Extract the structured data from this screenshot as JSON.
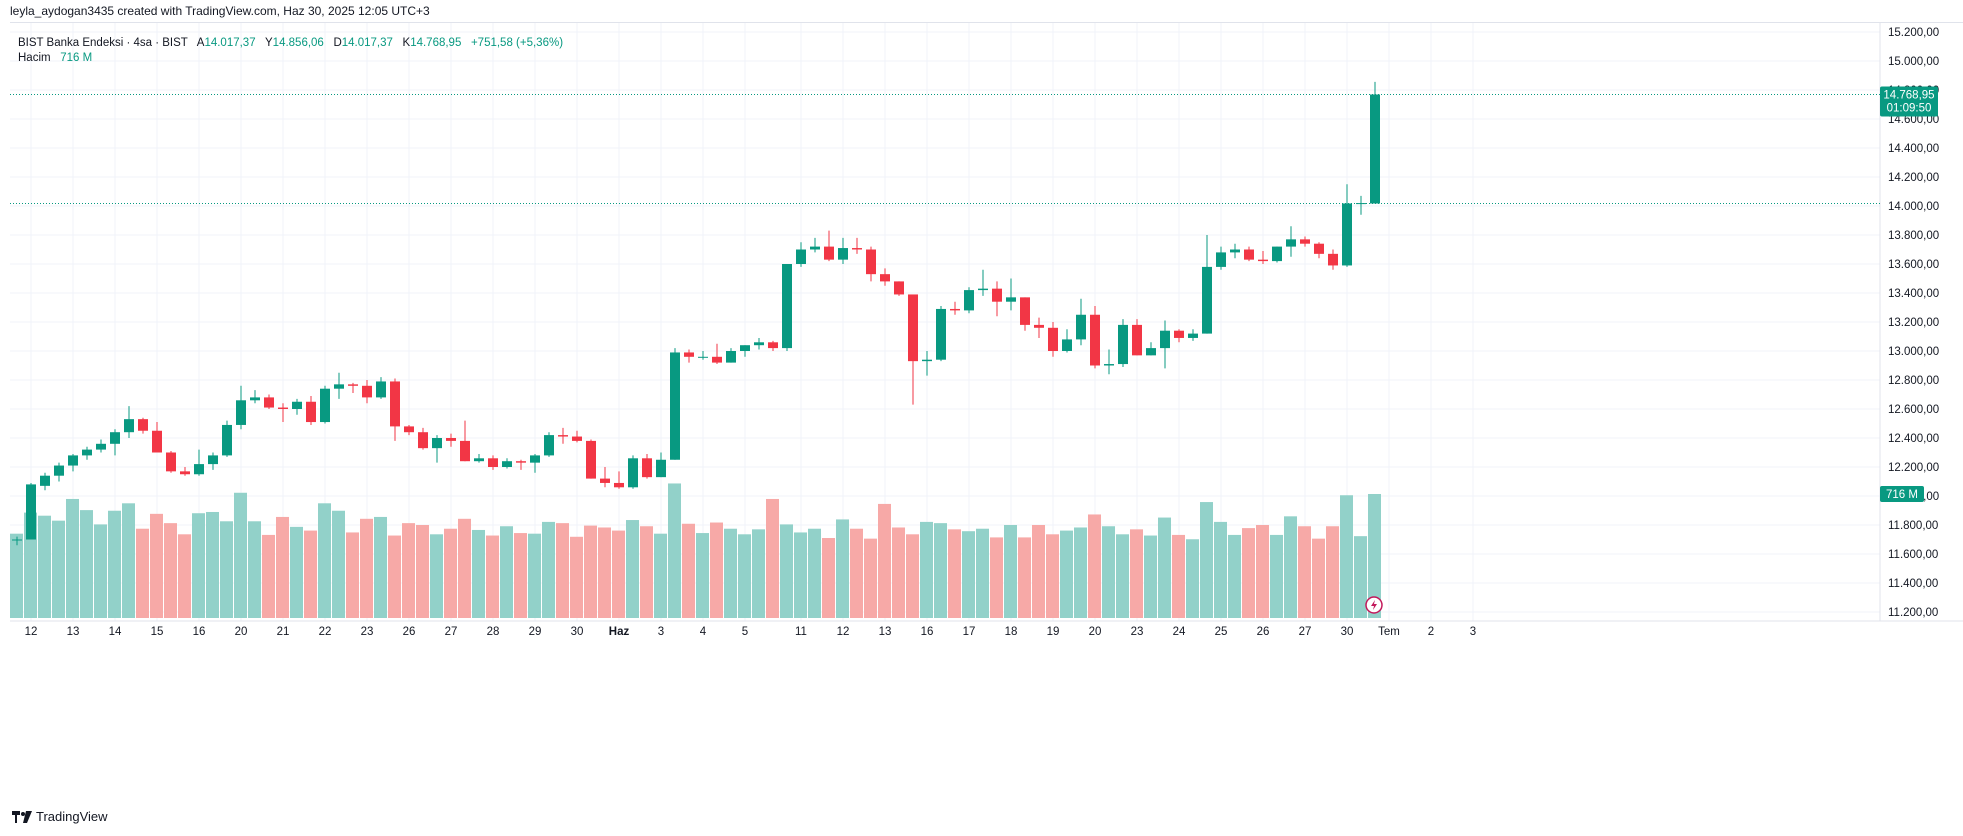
{
  "header": {
    "attribution": "leyla_aydogan3435 created with TradingView.com, Haz 30, 2025 12:05 UTC+3"
  },
  "legend": {
    "symbol": "BIST Banka Endeksi · 4sa · BIST",
    "open_label": "A",
    "open": "14.017,37",
    "high_label": "Y",
    "high": "14.856,06",
    "low_label": "D",
    "low": "14.017,37",
    "close_label": "K",
    "close": "14.768,95",
    "change": "+751,58 (+5,36%)",
    "volume_label": "Hacim",
    "volume": "716 M"
  },
  "price_badge": {
    "price": "14.768,95",
    "countdown": "01:09:50"
  },
  "volume_badge": "716 M",
  "footer": {
    "brand": "TradingView"
  },
  "colors": {
    "up": "#089981",
    "down": "#f23645",
    "vol_up": "#92d1c9",
    "vol_down": "#f7a9a7",
    "grid": "#f0f3fa",
    "dotted": "#089981"
  },
  "chart_data": {
    "type": "candlestick",
    "y_axis": {
      "min": 11200,
      "max": 15200,
      "ticks": [
        "15.200,00",
        "15.000,00",
        "14.800,00",
        "14.600,00",
        "14.400,00",
        "14.200,00",
        "14.000,00",
        "13.800,00",
        "13.600,00",
        "13.400,00",
        "13.200,00",
        "13.000,00",
        "12.800,00",
        "12.600,00",
        "12.400,00",
        "12.200,00",
        "12.000,00",
        "11.800,00",
        "11.600,00",
        "11.400,00",
        "11.200,00"
      ]
    },
    "x_ticks": [
      {
        "label": "12",
        "i": 1
      },
      {
        "label": "13",
        "i": 4
      },
      {
        "label": "14",
        "i": 7
      },
      {
        "label": "15",
        "i": 10
      },
      {
        "label": "16",
        "i": 13
      },
      {
        "label": "20",
        "i": 16
      },
      {
        "label": "21",
        "i": 19
      },
      {
        "label": "22",
        "i": 22
      },
      {
        "label": "23",
        "i": 25
      },
      {
        "label": "26",
        "i": 28
      },
      {
        "label": "27",
        "i": 31
      },
      {
        "label": "28",
        "i": 34
      },
      {
        "label": "29",
        "i": 37
      },
      {
        "label": "30",
        "i": 40
      },
      {
        "label": "Haz",
        "i": 43
      },
      {
        "label": "3",
        "i": 46
      },
      {
        "label": "4",
        "i": 49
      },
      {
        "label": "5",
        "i": 52
      },
      {
        "label": "11",
        "i": 56
      },
      {
        "label": "12",
        "i": 59
      },
      {
        "label": "13",
        "i": 62
      },
      {
        "label": "16",
        "i": 65
      },
      {
        "label": "17",
        "i": 68
      },
      {
        "label": "18",
        "i": 71
      },
      {
        "label": "19",
        "i": 74
      },
      {
        "label": "20",
        "i": 77
      },
      {
        "label": "23",
        "i": 80
      },
      {
        "label": "24",
        "i": 83
      },
      {
        "label": "25",
        "i": 86
      },
      {
        "label": "26",
        "i": 89
      },
      {
        "label": "27",
        "i": 92
      },
      {
        "label": "30",
        "i": 95
      },
      {
        "label": "Tem",
        "i": 98
      },
      {
        "label": "2",
        "i": 101
      },
      {
        "label": "3",
        "i": 104
      }
    ],
    "horizontal_lines": [
      14768.95,
      14017.37
    ],
    "candles": [
      [
        11700,
        11720,
        11660,
        11700,
        1.36
      ],
      [
        11700,
        12090,
        11700,
        12080,
        1.7
      ],
      [
        12070,
        12160,
        12040,
        12140,
        1.65
      ],
      [
        12140,
        12230,
        12100,
        12210,
        1.57
      ],
      [
        12210,
        12290,
        12170,
        12280,
        1.92
      ],
      [
        12280,
        12340,
        12250,
        12320,
        1.74
      ],
      [
        12320,
        12390,
        12300,
        12360,
        1.51
      ],
      [
        12360,
        12460,
        12280,
        12440,
        1.73
      ],
      [
        12440,
        12620,
        12400,
        12530,
        1.85
      ],
      [
        12530,
        12540,
        12430,
        12450,
        1.44
      ],
      [
        12450,
        12510,
        12300,
        12300,
        1.68
      ],
      [
        12300,
        12310,
        12160,
        12170,
        1.53
      ],
      [
        12170,
        12200,
        12140,
        12150,
        1.35
      ],
      [
        12150,
        12320,
        12140,
        12220,
        1.69
      ],
      [
        12220,
        12300,
        12180,
        12280,
        1.71
      ],
      [
        12280,
        12520,
        12270,
        12490,
        1.56
      ],
      [
        12490,
        12760,
        12460,
        12660,
        2.02
      ],
      [
        12660,
        12730,
        12640,
        12680,
        1.56
      ],
      [
        12680,
        12700,
        12600,
        12610,
        1.34
      ],
      [
        12610,
        12640,
        12510,
        12600,
        1.63
      ],
      [
        12600,
        12670,
        12560,
        12650,
        1.47
      ],
      [
        12650,
        12690,
        12490,
        12510,
        1.41
      ],
      [
        12510,
        12760,
        12500,
        12740,
        1.85
      ],
      [
        12740,
        12850,
        12670,
        12770,
        1.73
      ],
      [
        12770,
        12780,
        12710,
        12760,
        1.38
      ],
      [
        12760,
        12800,
        12640,
        12680,
        1.6
      ],
      [
        12680,
        12820,
        12670,
        12790,
        1.63
      ],
      [
        12790,
        12810,
        12380,
        12480,
        1.33
      ],
      [
        12480,
        12490,
        12420,
        12440,
        1.53
      ],
      [
        12440,
        12470,
        12320,
        12330,
        1.5
      ],
      [
        12330,
        12420,
        12230,
        12400,
        1.35
      ],
      [
        12400,
        12430,
        12340,
        12380,
        1.44
      ],
      [
        12380,
        12520,
        12240,
        12240,
        1.6
      ],
      [
        12240,
        12290,
        12230,
        12260,
        1.42
      ],
      [
        12260,
        12280,
        12180,
        12200,
        1.33
      ],
      [
        12200,
        12260,
        12190,
        12240,
        1.48
      ],
      [
        12240,
        12250,
        12180,
        12230,
        1.37
      ],
      [
        12230,
        12290,
        12160,
        12280,
        1.36
      ],
      [
        12280,
        12440,
        12270,
        12420,
        1.55
      ],
      [
        12420,
        12470,
        12360,
        12410,
        1.53
      ],
      [
        12410,
        12450,
        12370,
        12380,
        1.31
      ],
      [
        12380,
        12390,
        12130,
        12120,
        1.49
      ],
      [
        12120,
        12200,
        12060,
        12090,
        1.46
      ],
      [
        12090,
        12170,
        12050,
        12060,
        1.41
      ],
      [
        12060,
        12280,
        12050,
        12260,
        1.58
      ],
      [
        12260,
        12290,
        12120,
        12130,
        1.48
      ],
      [
        12130,
        12300,
        12130,
        12250,
        1.36
      ],
      [
        12250,
        13020,
        12250,
        12990,
        2.17
      ],
      [
        12990,
        13010,
        12920,
        12960,
        1.52
      ],
      [
        12960,
        13000,
        12940,
        12960,
        1.37
      ],
      [
        12960,
        13050,
        12910,
        12920,
        1.54
      ],
      [
        12920,
        13020,
        12920,
        13000,
        1.44
      ],
      [
        13000,
        13040,
        12960,
        13040,
        1.35
      ],
      [
        13040,
        13090,
        13010,
        13060,
        1.43
      ],
      [
        13060,
        13070,
        13000,
        13020,
        1.92
      ],
      [
        13020,
        13600,
        13000,
        13600,
        1.51
      ],
      [
        13600,
        13750,
        13580,
        13700,
        1.38
      ],
      [
        13700,
        13780,
        13680,
        13720,
        1.44
      ],
      [
        13720,
        13830,
        13620,
        13630,
        1.29
      ],
      [
        13630,
        13780,
        13600,
        13710,
        1.59
      ],
      [
        13710,
        13780,
        13670,
        13700,
        1.44
      ],
      [
        13700,
        13720,
        13480,
        13530,
        1.28
      ],
      [
        13530,
        13570,
        13450,
        13480,
        1.84
      ],
      [
        13480,
        13460,
        13380,
        13390,
        1.46
      ],
      [
        13390,
        13360,
        12630,
        12930,
        1.35
      ],
      [
        12930,
        13000,
        12830,
        12940,
        1.55
      ],
      [
        12940,
        13310,
        12930,
        13290,
        1.53
      ],
      [
        13290,
        13340,
        13250,
        13280,
        1.43
      ],
      [
        13280,
        13440,
        13260,
        13420,
        1.4
      ],
      [
        13420,
        13560,
        13380,
        13430,
        1.44
      ],
      [
        13430,
        13480,
        13240,
        13340,
        1.3
      ],
      [
        13340,
        13500,
        13280,
        13370,
        1.5
      ],
      [
        13370,
        13340,
        13140,
        13180,
        1.3
      ],
      [
        13180,
        13230,
        13090,
        13160,
        1.5
      ],
      [
        13160,
        13200,
        12960,
        13000,
        1.35
      ],
      [
        13000,
        13150,
        12990,
        13080,
        1.41
      ],
      [
        13080,
        13360,
        13040,
        13250,
        1.46
      ],
      [
        13250,
        13310,
        12880,
        12900,
        1.67
      ],
      [
        12900,
        13010,
        12840,
        12910,
        1.48
      ],
      [
        12910,
        13220,
        12890,
        13180,
        1.35
      ],
      [
        13180,
        13220,
        12970,
        12970,
        1.43
      ],
      [
        12970,
        13060,
        12970,
        13020,
        1.33
      ],
      [
        13020,
        13210,
        12880,
        13140,
        1.62
      ],
      [
        13140,
        13150,
        13060,
        13090,
        1.34
      ],
      [
        13090,
        13150,
        13070,
        13120,
        1.27
      ],
      [
        13120,
        13800,
        13120,
        13580,
        1.87
      ],
      [
        13580,
        13720,
        13560,
        13680,
        1.55
      ],
      [
        13680,
        13740,
        13640,
        13700,
        1.34
      ],
      [
        13700,
        13720,
        13620,
        13630,
        1.45
      ],
      [
        13630,
        13690,
        13600,
        13620,
        1.5
      ],
      [
        13620,
        13720,
        13610,
        13720,
        1.34
      ],
      [
        13720,
        13860,
        13650,
        13770,
        1.64
      ],
      [
        13770,
        13790,
        13720,
        13740,
        1.48
      ],
      [
        13740,
        13750,
        13640,
        13670,
        1.28
      ],
      [
        13670,
        13700,
        13560,
        13590,
        1.48
      ],
      [
        13590,
        14150,
        13580,
        14017.37,
        1.98
      ],
      [
        14017.37,
        14070,
        13940,
        14020,
        1.32
      ],
      [
        14017.37,
        14856.06,
        14017.37,
        14768.95,
        2.0
      ]
    ]
  }
}
